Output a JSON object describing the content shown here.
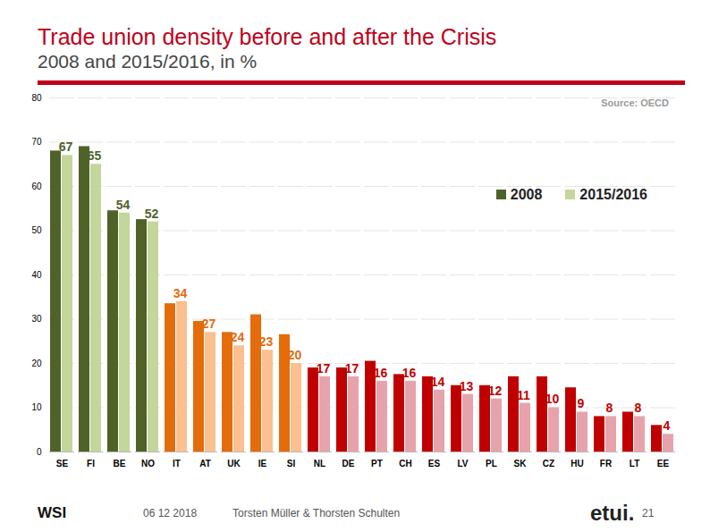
{
  "chart_data": {
    "type": "bar",
    "title": "Trade union density before and after the Crisis",
    "subtitle": "2008 and 2015/2016, in %",
    "source": "Source: OECD",
    "categories": [
      "SE",
      "FI",
      "BE",
      "NO",
      "IT",
      "AT",
      "UK",
      "IE",
      "SI",
      "NL",
      "DE",
      "PT",
      "CH",
      "ES",
      "LV",
      "PL",
      "SK",
      "CZ",
      "HU",
      "FR",
      "LT",
      "EE"
    ],
    "series": [
      {
        "name": "2008",
        "color": "#4f6228",
        "colors": [
          "#4f6228",
          "#4f6228",
          "#4f6228",
          "#4f6228",
          "#e46c0a",
          "#e46c0a",
          "#e46c0a",
          "#e46c0a",
          "#e46c0a",
          "#c00000",
          "#c00000",
          "#c00000",
          "#c00000",
          "#c00000",
          "#c00000",
          "#c00000",
          "#c00000",
          "#c00000",
          "#c00000",
          "#c00000",
          "#c00000",
          "#c00000"
        ],
        "values": [
          68,
          69,
          54.5,
          52.5,
          33.5,
          29.5,
          27,
          31,
          26.5,
          19,
          19,
          20.5,
          17.5,
          17,
          15,
          15,
          17,
          17,
          14.5,
          8,
          9,
          6
        ]
      },
      {
        "name": "2015/2016",
        "color": "#c3d69b",
        "colors": [
          "#c3d69b",
          "#c3d69b",
          "#c3d69b",
          "#c3d69b",
          "#fac090",
          "#fac090",
          "#fac090",
          "#fac090",
          "#fac090",
          "#e6a3ab",
          "#e6a3ab",
          "#e6a3ab",
          "#e6a3ab",
          "#e6a3ab",
          "#e6a3ab",
          "#e6a3ab",
          "#e6a3ab",
          "#e6a3ab",
          "#e6a3ab",
          "#e6a3ab",
          "#e6a3ab",
          "#e6a3ab"
        ],
        "values": [
          67,
          65,
          54,
          52,
          34,
          27,
          24,
          23,
          20,
          17,
          17,
          16,
          16,
          14,
          13,
          12,
          11,
          10,
          9,
          8,
          8,
          4
        ]
      }
    ],
    "ylim": [
      0,
      80
    ],
    "yticks": [
      0,
      10,
      20,
      30,
      40,
      50,
      60,
      70,
      80
    ],
    "grid": true,
    "legend": "top-right",
    "data_labels": true
  },
  "footer": {
    "logo_left": "WSI",
    "date": "06 12 2018",
    "authors": "Torsten Müller & Thorsten Schulten",
    "logo_right": "etui.",
    "page": "21"
  }
}
